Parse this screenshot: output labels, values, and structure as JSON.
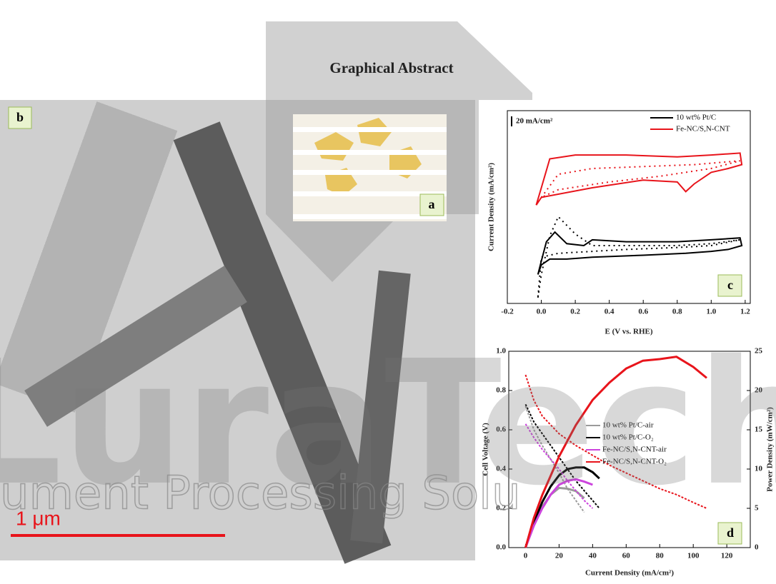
{
  "header": {
    "title": "Graphical Abstract"
  },
  "panels": {
    "a": {
      "label": "a"
    },
    "b": {
      "label": "b",
      "scale_bar": "1 μm"
    }
  },
  "watermark": {
    "large": "LuraTech",
    "tagline": "ument Processing Solu"
  },
  "chart_data": [
    {
      "type": "cv",
      "panel_label": "c",
      "x_label": "E (V vs. RHE)",
      "y_label": "Current Density (mA/cm²)",
      "scale_label": "20 mA/cm²",
      "xlim": [
        -0.2,
        1.23
      ],
      "ylim": [
        0,
        100
      ],
      "xticks": [
        -0.2,
        {
          "value": 0,
          "label": "0.0"
        },
        0.2,
        0.4,
        0.6,
        0.8,
        {
          "value": 1,
          "label": "1.0"
        },
        1.2
      ],
      "series": [
        {
          "name": "10 wt% Pt/C",
          "color": "#000000",
          "x": [
            -0.02,
            0.0,
            0.03,
            0.08,
            0.15,
            0.25,
            0.3,
            0.5,
            0.8,
            1.0,
            1.17,
            1.18,
            1.1,
            1.0,
            0.85,
            0.6,
            0.3,
            0.15,
            0.05,
            0.0,
            -0.02
          ],
          "values": [
            15,
            22,
            32,
            37,
            31,
            30,
            33,
            32,
            32,
            33,
            34,
            30,
            28,
            27,
            26,
            25,
            24,
            23,
            23,
            20,
            15
          ],
          "x_dotted": [
            -0.02,
            0.0,
            0.05,
            0.1,
            0.2,
            0.3,
            0.5,
            0.8,
            1.0,
            1.17,
            1.0,
            0.8,
            0.5,
            0.3,
            0.1,
            0.0,
            -0.02
          ],
          "values_dotted": [
            3,
            15,
            35,
            45,
            36,
            30,
            30,
            30,
            31,
            33,
            30,
            29,
            28,
            27,
            26,
            24,
            3
          ]
        },
        {
          "name": "Fe-NC/S,N-CNT",
          "color": "#e8141b",
          "x": [
            -0.03,
            0.0,
            0.05,
            0.2,
            0.5,
            0.8,
            1.0,
            1.17,
            1.18,
            1.1,
            1.0,
            0.9,
            0.85,
            0.8,
            0.6,
            0.3,
            0.0,
            -0.03
          ],
          "values": [
            51,
            60,
            75,
            77,
            77,
            76,
            77,
            78,
            72,
            70,
            68,
            62,
            58,
            63,
            64,
            60,
            55,
            51
          ],
          "x_dotted": [
            0.0,
            0.1,
            0.3,
            0.6,
            0.9,
            1.17,
            1.0,
            0.7,
            0.4,
            0.1,
            0.0
          ],
          "values_dotted": [
            55,
            67,
            70,
            71,
            72,
            74,
            70,
            66,
            63,
            59,
            55
          ]
        }
      ]
    },
    {
      "type": "polarization",
      "panel_label": "d",
      "x_label": "Current Density (mA/cm²)",
      "y_label": "Cell Voltage (V)",
      "y2_label": "Power Density (mW/cm²)",
      "xlim": [
        -10,
        134
      ],
      "ylim": [
        0,
        1
      ],
      "y2lim": [
        0,
        25
      ],
      "xticks": [
        0,
        20,
        40,
        60,
        80,
        100,
        120
      ],
      "yticks": [
        {
          "value": 0,
          "label": "0.0"
        },
        0.2,
        0.4,
        0.6,
        0.8,
        {
          "value": 1,
          "label": "1.0"
        }
      ],
      "y2ticks": [
        0,
        5,
        10,
        15,
        20,
        25
      ],
      "series": [
        {
          "name": "10 wt% Pt/C-air",
          "color": "#9a9a9a",
          "x": [
            0,
            5,
            10,
            15,
            20,
            25,
            30,
            35
          ],
          "values": [
            0.72,
            0.6,
            0.52,
            0.45,
            0.38,
            0.3,
            0.24,
            0.18
          ],
          "power": [
            0,
            3,
            5.2,
            6.75,
            7.6,
            7.5,
            7.2,
            6.3
          ]
        },
        {
          "name": "10 wt% Pt/C-O₂",
          "color": "#000000",
          "x": [
            0,
            5,
            10,
            15,
            20,
            25,
            30,
            35,
            40,
            44
          ],
          "values": [
            0.73,
            0.64,
            0.58,
            0.52,
            0.46,
            0.4,
            0.34,
            0.29,
            0.24,
            0.2
          ],
          "power": [
            0,
            3.2,
            5.8,
            7.8,
            9.2,
            10,
            10.2,
            10.2,
            9.6,
            8.8
          ]
        },
        {
          "name": "Fe-NC/S,N-CNT-air",
          "color": "#cc44dd",
          "x": [
            0,
            5,
            10,
            15,
            20,
            25,
            30,
            35,
            40
          ],
          "values": [
            0.63,
            0.56,
            0.5,
            0.45,
            0.4,
            0.34,
            0.29,
            0.24,
            0.2
          ],
          "power": [
            0,
            2.8,
            5,
            6.75,
            8,
            8.5,
            8.7,
            8.4,
            8
          ]
        },
        {
          "name": "Fe-NC/S,N-CNT-O₂",
          "color": "#e8141b",
          "x": [
            0,
            5,
            10,
            20,
            30,
            40,
            50,
            60,
            70,
            80,
            90,
            100,
            108
          ],
          "values": [
            0.88,
            0.75,
            0.67,
            0.58,
            0.52,
            0.47,
            0.42,
            0.38,
            0.34,
            0.3,
            0.27,
            0.23,
            0.2
          ],
          "power": [
            0,
            3.8,
            6.7,
            11.6,
            15.6,
            18.8,
            21,
            22.8,
            23.8,
            24,
            24.3,
            23,
            21.6
          ]
        }
      ]
    }
  ]
}
